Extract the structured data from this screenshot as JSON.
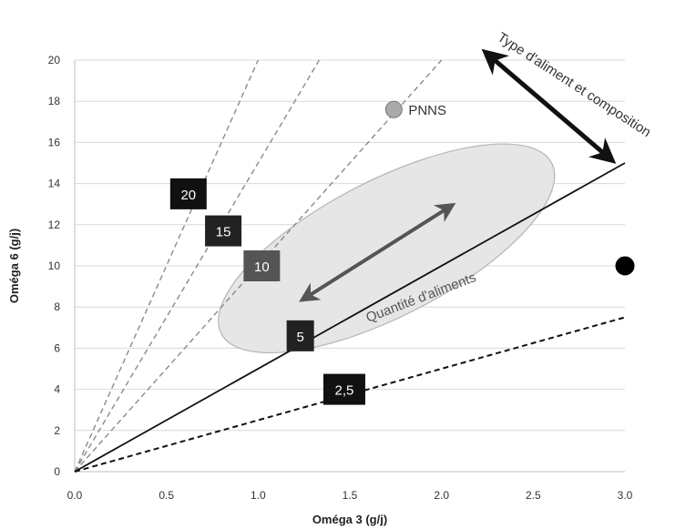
{
  "chart_data": {
    "type": "line",
    "title": "",
    "xlabel": "Oméga 3 (g/j)",
    "ylabel": "Oméga 6 (g/j)",
    "xlim": [
      0,
      3
    ],
    "ylim": [
      0,
      20
    ],
    "x_ticks": [
      "0.0",
      "0.5",
      "1.0",
      "1.5",
      "2.0",
      "2.5",
      "3.0"
    ],
    "y_ticks": [
      "0",
      "2",
      "4",
      "6",
      "8",
      "10",
      "12",
      "14",
      "16",
      "18",
      "20"
    ],
    "grid": "horizontal",
    "ratio_lines": [
      {
        "label": "20",
        "slope": 20,
        "style": "dashed-gray",
        "label_at": [
          0.62,
          13.5
        ],
        "label_bg": "#111111"
      },
      {
        "label": "15",
        "slope": 15,
        "style": "dashed-gray",
        "label_at": [
          0.81,
          11.7
        ],
        "label_bg": "#222222"
      },
      {
        "label": "10",
        "slope": 10,
        "style": "dashed-gray",
        "label_at": [
          1.02,
          10.0
        ],
        "label_bg": "#555555"
      },
      {
        "label": "5",
        "slope": 5,
        "style": "solid-black",
        "label_at": [
          1.23,
          6.6
        ],
        "label_bg": "#222222"
      },
      {
        "label": "2,5",
        "slope": 2.5,
        "style": "dashed-black",
        "label_at": [
          1.47,
          4.0
        ],
        "label_bg": "#111111"
      }
    ],
    "points": [
      {
        "label": "PNNS",
        "x": 1.74,
        "y": 17.6,
        "color": "#aaaaaa"
      },
      {
        "label": "",
        "x": 3.0,
        "y": 10.0,
        "color": "#000000"
      }
    ],
    "ellipse": {
      "cx": 1.7,
      "cy": 10.85,
      "rx_axis": 7.0,
      "ry_axis": 1.7,
      "angle_dir": [
        1,
        4.6
      ],
      "fill": "#e6e6e6",
      "stroke": "#b5b5b5"
    },
    "arrows": [
      {
        "label": "Quantité d'aliments",
        "from": [
          1.25,
          8.4
        ],
        "to": [
          2.05,
          12.9
        ]
      },
      {
        "label": "Type d'aliment et composition",
        "from": [
          2.25,
          20.3
        ],
        "to": [
          2.92,
          15.2
        ]
      }
    ]
  }
}
